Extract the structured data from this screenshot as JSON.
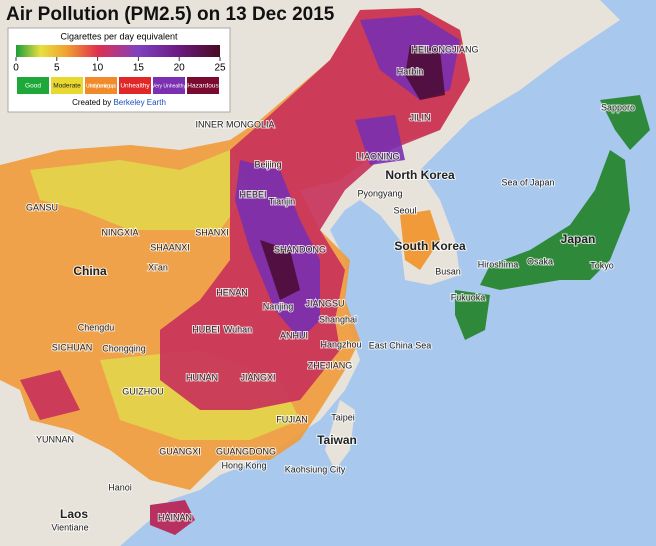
{
  "title": "Air Pollution (PM2.5) on 13 Dec 2015",
  "legend": {
    "title": "Cigarettes per day equivalent",
    "ticks": [
      0,
      5,
      10,
      15,
      20,
      25
    ],
    "categories": [
      "Good",
      "Moderate",
      "Unhealthy for sensitive groups",
      "Unhealthy",
      "Very Unhealthy",
      "Hazardous"
    ],
    "credit_prefix": "Created by",
    "credit_name": "Berkeley Earth"
  },
  "places": [
    "HEILONGJIANG",
    "Harbin",
    "JILIN",
    "LIAONING",
    "INNER MONGOLIA",
    "Beijing",
    "HEBEI",
    "Tianjin",
    "North Korea",
    "Pyongyang",
    "Sea of Japan",
    "Seoul",
    "South Korea",
    "Busan",
    "GANSU",
    "NINGXIA",
    "SHAANXI",
    "SHANXI",
    "SHANDONG",
    "Xi'an",
    "China",
    "HENAN",
    "Nanjing",
    "JIANGSU",
    "Shanghai",
    "Chengdu",
    "SICHUAN",
    "Chongqing",
    "HUBEI",
    "Wuhan",
    "ANHUI",
    "Hangzhou",
    "East China Sea",
    "HUNAN",
    "JIANGXI",
    "ZHEJIANG",
    "GUIZHOU",
    "FUJIAN",
    "Taipei",
    "Taiwan",
    "YUNNAN",
    "GUANGXI",
    "GUANGDONG",
    "Hong Kong",
    "Kaohsiung City",
    "Hanoi",
    "Laos",
    "Vientiane",
    "HAINAN",
    "Japan",
    "Sapporo",
    "Hiroshima",
    "Osaka",
    "Tokyo",
    "Fukuoka"
  ]
}
